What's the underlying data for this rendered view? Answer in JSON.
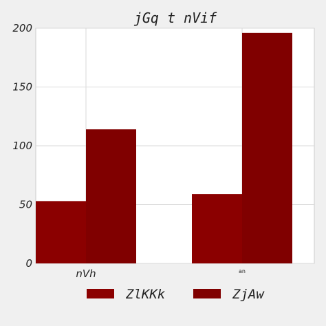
{
  "chart_data": {
    "type": "bar",
    "title": "jGq t nVif",
    "xlabel": "",
    "ylabel": "",
    "categories": [
      "nVh",
      "an"
    ],
    "series": [
      {
        "name": "ZlKKk",
        "values": [
          53,
          59
        ],
        "color": "#8b0000"
      },
      {
        "name": "ZjAw",
        "values": [
          114,
          196
        ],
        "color": "#800000"
      }
    ],
    "ylim": [
      0,
      200
    ],
    "yticks": [
      0,
      50,
      100,
      150,
      200
    ],
    "grid": true,
    "legend_position": "bottom"
  }
}
